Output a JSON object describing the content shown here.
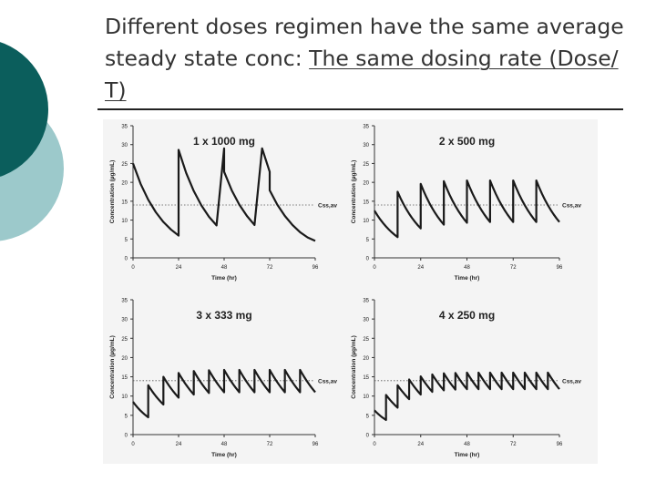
{
  "slide": {
    "title_plain": "Different doses regimen have the same average steady state conc: ",
    "title_underlined": "The same dosing rate (Dose/ T)"
  },
  "chart_data": [
    {
      "type": "line",
      "title": "1 x 1000 mg",
      "xlabel": "Time (hr)",
      "ylabel": "Concentration (µg/mL)",
      "xlim": [
        0,
        96
      ],
      "ylim": [
        0,
        35
      ],
      "xticks": [
        0,
        24,
        48,
        72,
        96
      ],
      "yticks": [
        0,
        5,
        10,
        15,
        20,
        25,
        30,
        35
      ],
      "reference_line": {
        "label": "Css,av",
        "y": 14
      },
      "dose_interval_hr": 24,
      "dose_times_hr": [
        0,
        24,
        48,
        72
      ],
      "x": [
        0,
        4,
        8,
        12,
        16,
        20,
        24,
        24,
        28,
        32,
        36,
        40,
        44,
        48,
        48,
        52,
        56,
        60,
        64,
        68,
        72,
        72,
        76,
        80,
        84,
        88,
        92,
        96
      ],
      "y": [
        25,
        19.6,
        15.4,
        12.1,
        9.5,
        7.5,
        5.9,
        28.6,
        22.5,
        17.7,
        13.9,
        10.9,
        8.6,
        29.0,
        22.8,
        17.9,
        14.1,
        11.1,
        8.7,
        29.0,
        22.8,
        17.9,
        14.1,
        11.1,
        8.7,
        6.8,
        5.4,
        4.5
      ]
    },
    {
      "type": "line",
      "title": "2 x 500 mg",
      "xlabel": "Time (hr)",
      "ylabel": "Concentration (µg/mL)",
      "xlim": [
        0,
        96
      ],
      "ylim": [
        0,
        35
      ],
      "xticks": [
        0,
        24,
        48,
        72,
        96
      ],
      "yticks": [
        0,
        5,
        10,
        15,
        20,
        25,
        30,
        35
      ],
      "reference_line": {
        "label": "Css,av",
        "y": 14
      },
      "dose_interval_hr": 12,
      "dose_times_hr": [
        0,
        12,
        24,
        36,
        48,
        60,
        72,
        84
      ],
      "trough_values": [
        5.5,
        7.8,
        8.8,
        9.3,
        9.5,
        9.5,
        9.5,
        9.5
      ],
      "peak_values": [
        12.5,
        17.5,
        19.6,
        20.3,
        20.5,
        20.5,
        20.5,
        20.5
      ]
    },
    {
      "type": "line",
      "title": "3 x 333 mg",
      "xlabel": "Time (hr)",
      "ylabel": "Concentration (µg/mL)",
      "xlim": [
        0,
        96
      ],
      "ylim": [
        0,
        35
      ],
      "xticks": [
        0,
        24,
        48,
        72,
        96
      ],
      "yticks": [
        0,
        5,
        10,
        15,
        20,
        25,
        30,
        35
      ],
      "reference_line": {
        "label": "Css,av",
        "y": 14
      },
      "dose_interval_hr": 8,
      "dose_times_hr": [
        0,
        8,
        16,
        24,
        32,
        40,
        48,
        56,
        64,
        72,
        80,
        88
      ],
      "trough_values": [
        4.5,
        7.8,
        9.6,
        10.4,
        10.8,
        11.0,
        11.0,
        11.0,
        11.0,
        11.0,
        11.0,
        11.0
      ],
      "peak_values": [
        8.5,
        12.8,
        15.0,
        16.0,
        16.5,
        16.7,
        16.8,
        16.8,
        16.8,
        16.8,
        16.8,
        16.8
      ]
    },
    {
      "type": "line",
      "title": "4 x 250 mg",
      "xlabel": "Time (hr)",
      "ylabel": "Concentration (µg/mL)",
      "xlim": [
        0,
        96
      ],
      "ylim": [
        0,
        35
      ],
      "xticks": [
        0,
        24,
        48,
        72,
        96
      ],
      "yticks": [
        0,
        5,
        10,
        15,
        20,
        25,
        30,
        35
      ],
      "reference_line": {
        "label": "Css,av",
        "y": 14
      },
      "dose_interval_hr": 6,
      "dose_times_hr": [
        0,
        6,
        12,
        18,
        24,
        30,
        36,
        42,
        48,
        54,
        60,
        66,
        72,
        78,
        84,
        90
      ],
      "trough_values": [
        3.8,
        7.0,
        9.2,
        10.4,
        11.1,
        11.5,
        11.7,
        11.8,
        11.8,
        11.8,
        11.8,
        11.8,
        11.8,
        11.8,
        11.8,
        11.8
      ],
      "peak_values": [
        6.3,
        10.3,
        12.8,
        14.3,
        15.1,
        15.6,
        15.9,
        16.0,
        16.1,
        16.1,
        16.1,
        16.1,
        16.1,
        16.1,
        16.1,
        16.1
      ]
    }
  ]
}
